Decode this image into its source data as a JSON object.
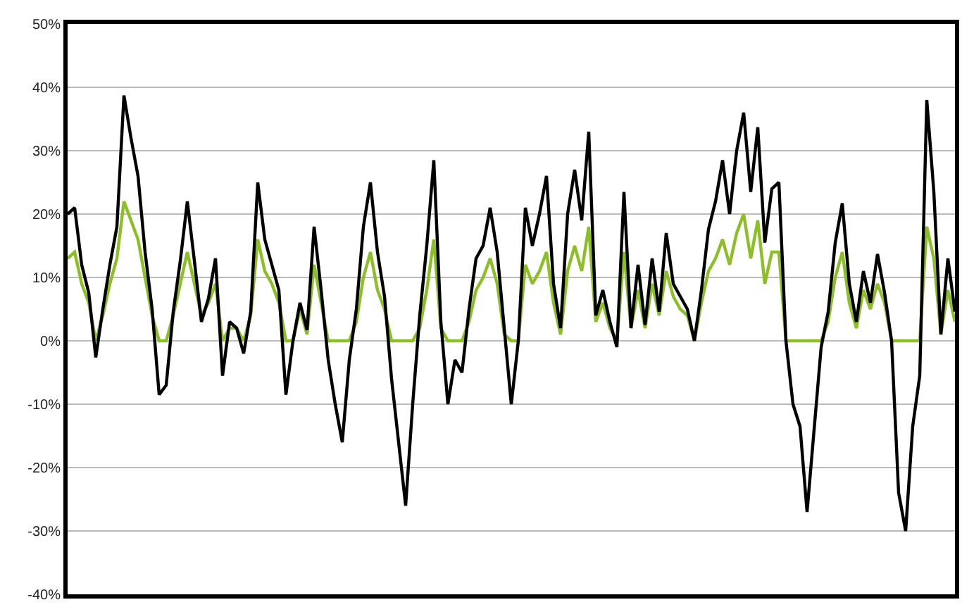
{
  "chart_data": {
    "type": "line",
    "categories": [
      null,
      null,
      null,
      null,
      null,
      null,
      null,
      null,
      null,
      null,
      null,
      null,
      null,
      null,
      null,
      null,
      null,
      null,
      null,
      null,
      null,
      null,
      null,
      null,
      null,
      null,
      null,
      null,
      null,
      null,
      null,
      null,
      null,
      null,
      null,
      null,
      null,
      null,
      null,
      null,
      null,
      null,
      null,
      null,
      null,
      null,
      null,
      null,
      null,
      null,
      null,
      null,
      null,
      null,
      null,
      null,
      null,
      null,
      null,
      null,
      null,
      null,
      null,
      null,
      null,
      null,
      null,
      null,
      null,
      null,
      null,
      null,
      null,
      null,
      null,
      null,
      null,
      null,
      null,
      null,
      null,
      null,
      null,
      null,
      null,
      null,
      null,
      null,
      null,
      null,
      null,
      null,
      null,
      null,
      null,
      null,
      null,
      null,
      null,
      null,
      null,
      null,
      null,
      null,
      null,
      null,
      null,
      null,
      null,
      null,
      null,
      null,
      null,
      null,
      null,
      null,
      null,
      null,
      null,
      null,
      null,
      null,
      null,
      null,
      null,
      null,
      null
    ],
    "series": [
      {
        "color": "#8cbf26",
        "values": [
          13,
          14,
          9,
          6,
          0,
          4,
          9,
          13,
          22,
          19,
          16,
          10,
          4,
          0,
          0,
          4,
          9,
          14,
          9,
          4,
          6,
          9,
          0,
          2,
          2,
          0,
          4,
          16,
          11,
          9,
          6,
          0,
          0,
          5,
          1,
          12,
          6,
          0,
          0,
          0,
          0,
          3,
          10,
          14,
          8,
          5,
          0,
          0,
          0,
          0,
          2,
          8,
          16,
          2,
          0,
          0,
          0,
          3,
          8,
          10,
          13,
          9,
          1,
          0,
          0,
          12,
          9,
          11,
          14,
          6,
          1,
          11,
          15,
          11,
          18,
          3,
          6,
          2,
          0,
          14,
          2,
          8,
          2,
          9,
          4,
          11,
          7,
          5,
          4,
          0,
          6,
          11,
          13,
          16,
          12,
          17,
          20,
          13,
          19,
          9,
          14,
          14,
          0,
          0,
          0,
          0,
          0,
          0,
          3,
          10,
          14,
          6,
          2,
          8,
          5,
          9,
          6,
          0,
          0,
          0,
          0,
          0,
          18,
          13,
          1,
          8,
          3
        ]
      },
      {
        "color": "#000000",
        "values": [
          20,
          21,
          12,
          7.6,
          -2.6,
          5,
          12,
          18,
          38.7,
          32,
          26,
          14,
          5,
          -8.5,
          -7,
          4.6,
          12.6,
          22,
          12.6,
          3,
          6.7,
          13,
          -5.5,
          3,
          2,
          -2,
          4.6,
          25,
          16,
          12,
          8,
          -8.5,
          0,
          6,
          1.7,
          18,
          8,
          -3,
          -10,
          -16,
          -3,
          5,
          18,
          25,
          14,
          7,
          -6,
          -16,
          -26,
          -10,
          4,
          15,
          28.5,
          3,
          -10,
          -3,
          -5,
          5,
          13,
          15,
          21,
          14,
          2,
          -10,
          0,
          21,
          15,
          20,
          26,
          9,
          2,
          20,
          27,
          19,
          33,
          4,
          8,
          3,
          -1,
          23.5,
          2,
          12,
          2.5,
          13,
          4.6,
          17,
          9,
          7,
          5,
          0,
          8,
          17.6,
          22,
          28.5,
          20,
          30,
          36,
          23.5,
          33.7,
          15.5,
          24,
          25,
          0,
          -10,
          -13.5,
          -27,
          -14,
          -1,
          4.6,
          15.5,
          21.7,
          9,
          3,
          11,
          6,
          13.7,
          7.6,
          0,
          -24,
          -30,
          -13.5,
          -5.5,
          38,
          23.5,
          1,
          13,
          4.6
        ]
      }
    ],
    "ylim": [
      -40,
      50
    ],
    "yticks": [
      {
        "value": -40,
        "label": "-40%"
      },
      {
        "value": -30,
        "label": "-30%"
      },
      {
        "value": -20,
        "label": "-20%"
      },
      {
        "value": -10,
        "label": "-10%"
      },
      {
        "value": 0,
        "label": "0%"
      },
      {
        "value": 10,
        "label": "10%"
      },
      {
        "value": 20,
        "label": "20%"
      },
      {
        "value": 30,
        "label": "30%"
      },
      {
        "value": 40,
        "label": "40%"
      },
      {
        "value": 50,
        "label": "50%"
      }
    ],
    "grid": "y",
    "tick_labels": "y",
    "marker": "none",
    "line_style": "solid"
  }
}
